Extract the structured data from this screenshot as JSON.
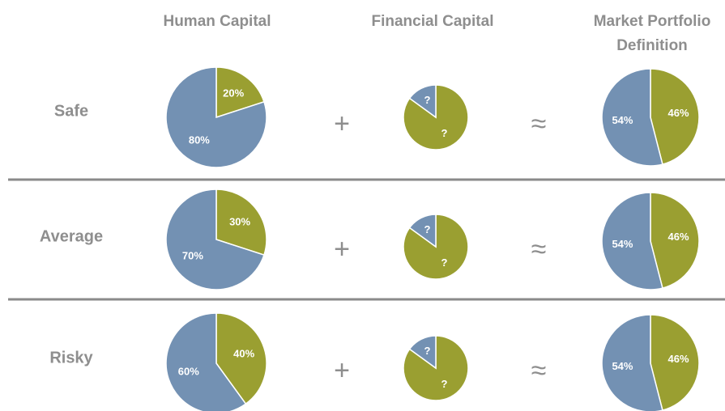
{
  "columns": [
    "Human Capital",
    "Financial Capital",
    "Market Portfolio Definition"
  ],
  "operators": [
    "+",
    "≈"
  ],
  "rows": [
    {
      "label": "Safe",
      "pies": [
        {
          "slices": [
            {
              "value": 20,
              "label": "20%",
              "color": "#9a9f31"
            },
            {
              "value": 80,
              "label": "80%",
              "color": "#7391b3"
            }
          ]
        },
        {
          "slices": [
            {
              "value": 85,
              "label": "?",
              "color": "#9a9f31"
            },
            {
              "value": 15,
              "label": "?",
              "color": "#7391b3"
            }
          ]
        },
        {
          "slices": [
            {
              "value": 46,
              "label": "46%",
              "color": "#9a9f31"
            },
            {
              "value": 54,
              "label": "54%",
              "color": "#7391b3"
            }
          ]
        }
      ]
    },
    {
      "label": "Average",
      "pies": [
        {
          "slices": [
            {
              "value": 30,
              "label": "30%",
              "color": "#9a9f31"
            },
            {
              "value": 70,
              "label": "70%",
              "color": "#7391b3"
            }
          ]
        },
        {
          "slices": [
            {
              "value": 85,
              "label": "?",
              "color": "#9a9f31"
            },
            {
              "value": 15,
              "label": "?",
              "color": "#7391b3"
            }
          ]
        },
        {
          "slices": [
            {
              "value": 46,
              "label": "46%",
              "color": "#9a9f31"
            },
            {
              "value": 54,
              "label": "54%",
              "color": "#7391b3"
            }
          ]
        }
      ]
    },
    {
      "label": "Risky",
      "pies": [
        {
          "slices": [
            {
              "value": 40,
              "label": "40%",
              "color": "#9a9f31"
            },
            {
              "value": 60,
              "label": "60%",
              "color": "#7391b3"
            }
          ]
        },
        {
          "slices": [
            {
              "value": 85,
              "label": "?",
              "color": "#9a9f31"
            },
            {
              "value": 15,
              "label": "?",
              "color": "#7391b3"
            }
          ]
        },
        {
          "slices": [
            {
              "value": 46,
              "label": "46%",
              "color": "#9a9f31"
            },
            {
              "value": 54,
              "label": "54%",
              "color": "#7391b3"
            }
          ]
        }
      ]
    }
  ]
}
